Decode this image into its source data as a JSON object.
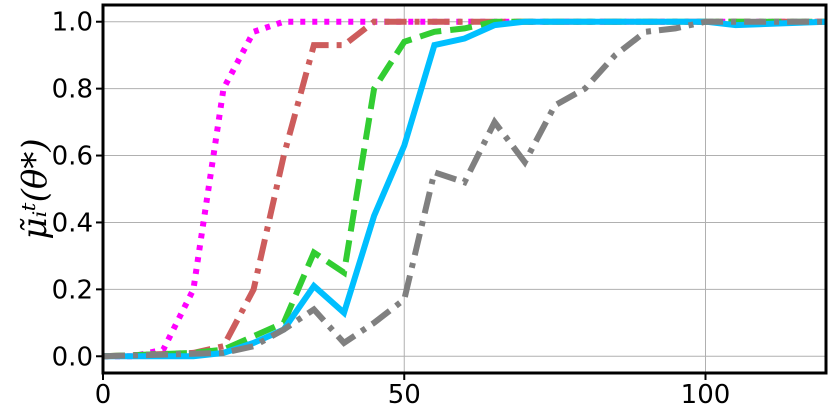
{
  "chart_data": {
    "type": "line",
    "title": "",
    "xlabel": "",
    "ylabel": "μ̃ᵢᵗ(θ*)",
    "xlim": [
      0,
      120
    ],
    "ylim": [
      -0.05,
      1.05
    ],
    "xticks": [
      0,
      50,
      100
    ],
    "xtick_labels": [
      "0",
      "50",
      "100"
    ],
    "yticks": [
      0.0,
      0.2,
      0.4,
      0.6,
      0.8,
      1.0
    ],
    "ytick_labels": [
      "0.0",
      "0.2",
      "0.4",
      "0.6",
      "0.8",
      "1.0"
    ],
    "grid": true,
    "legend": "none",
    "series": [
      {
        "color": "#ff00ff",
        "style": "dotted",
        "points": [
          [
            0,
            0.0
          ],
          [
            5,
            0.0
          ],
          [
            10,
            0.02
          ],
          [
            15,
            0.2
          ],
          [
            20,
            0.8
          ],
          [
            25,
            0.97
          ],
          [
            30,
            1.0
          ],
          [
            120,
            1.0
          ]
        ]
      },
      {
        "color": "#cd5c5c",
        "style": "dashdot",
        "points": [
          [
            0,
            0.0
          ],
          [
            15,
            0.01
          ],
          [
            20,
            0.03
          ],
          [
            25,
            0.2
          ],
          [
            30,
            0.6
          ],
          [
            35,
            0.93
          ],
          [
            40,
            0.93
          ],
          [
            45,
            1.0
          ],
          [
            50,
            1.0
          ],
          [
            120,
            1.0
          ]
        ]
      },
      {
        "color": "#32cd32",
        "style": "dashed",
        "points": [
          [
            0,
            0.0
          ],
          [
            15,
            0.01
          ],
          [
            20,
            0.02
          ],
          [
            25,
            0.06
          ],
          [
            30,
            0.1
          ],
          [
            35,
            0.31
          ],
          [
            40,
            0.25
          ],
          [
            45,
            0.8
          ],
          [
            50,
            0.94
          ],
          [
            55,
            0.97
          ],
          [
            60,
            0.98
          ],
          [
            65,
            1.0
          ],
          [
            120,
            1.0
          ]
        ]
      },
      {
        "color": "#00bfff",
        "style": "solid",
        "points": [
          [
            0,
            0.0
          ],
          [
            15,
            0.0
          ],
          [
            20,
            0.01
          ],
          [
            25,
            0.04
          ],
          [
            30,
            0.08
          ],
          [
            35,
            0.21
          ],
          [
            40,
            0.13
          ],
          [
            45,
            0.42
          ],
          [
            50,
            0.63
          ],
          [
            55,
            0.93
          ],
          [
            60,
            0.95
          ],
          [
            65,
            0.99
          ],
          [
            70,
            1.0
          ],
          [
            100,
            1.0
          ],
          [
            105,
            0.99
          ],
          [
            120,
            1.0
          ]
        ]
      },
      {
        "color": "#808080",
        "style": "dashdot",
        "points": [
          [
            0,
            0.0
          ],
          [
            20,
            0.01
          ],
          [
            25,
            0.03
          ],
          [
            30,
            0.08
          ],
          [
            35,
            0.14
          ],
          [
            40,
            0.04
          ],
          [
            45,
            0.1
          ],
          [
            50,
            0.17
          ],
          [
            55,
            0.55
          ],
          [
            60,
            0.52
          ],
          [
            65,
            0.7
          ],
          [
            70,
            0.58
          ],
          [
            75,
            0.75
          ],
          [
            80,
            0.8
          ],
          [
            85,
            0.9
          ],
          [
            90,
            0.97
          ],
          [
            95,
            0.98
          ],
          [
            100,
            1.0
          ],
          [
            120,
            1.0
          ]
        ]
      }
    ]
  }
}
